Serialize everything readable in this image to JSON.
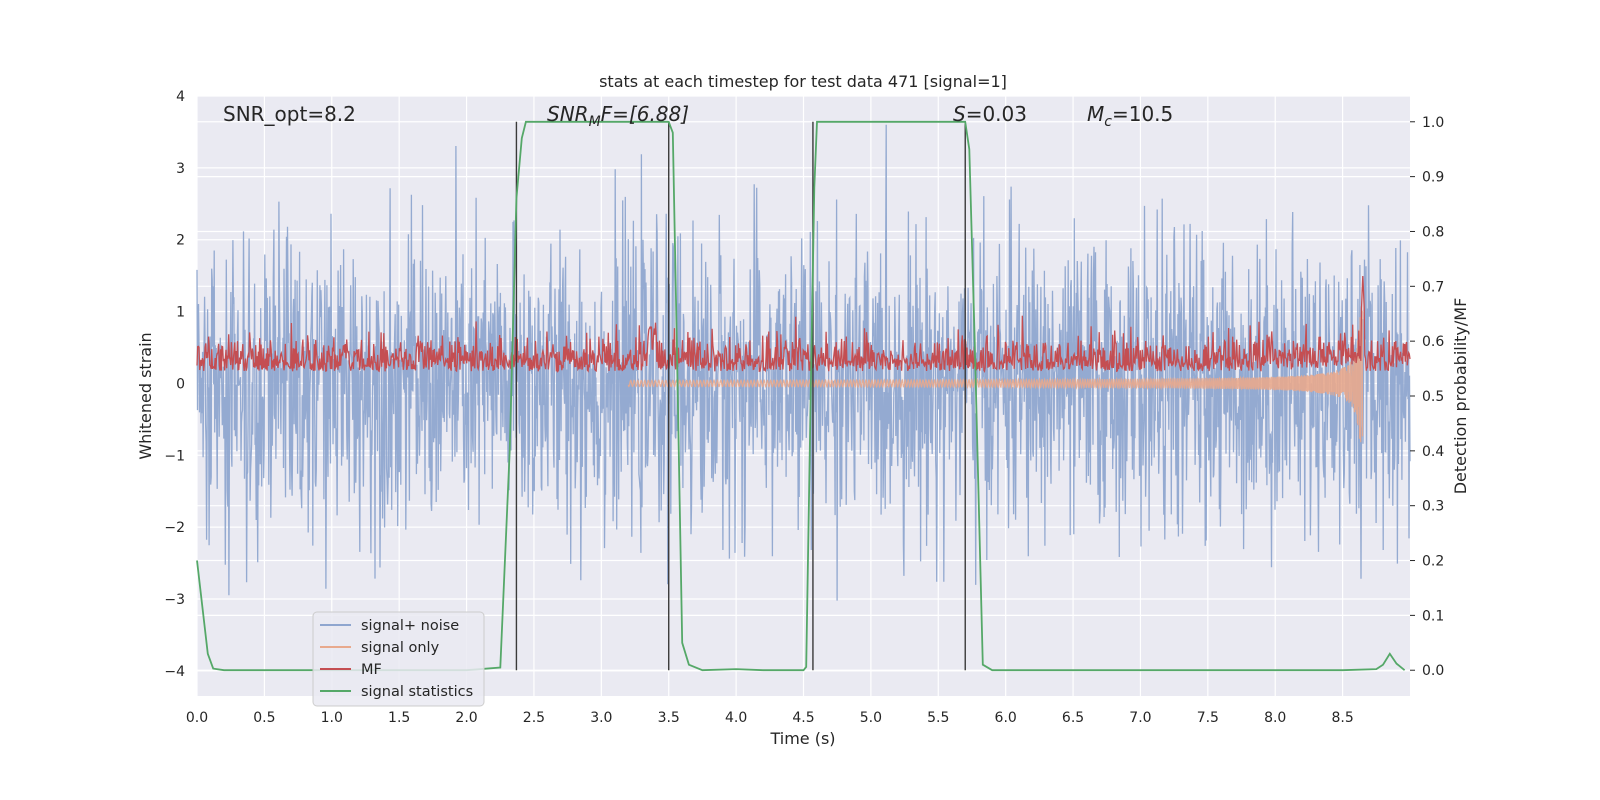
{
  "chart_data": {
    "type": "line",
    "title": "stats at each timestep for test data 471 [signal=1]",
    "xlabel": "Time (s)",
    "ylabel": "Whitened strain",
    "y2label": "Detection probability/MF",
    "xlim": [
      0,
      9.0
    ],
    "ylim": [
      -4.35,
      4.0
    ],
    "y2lim": [
      -0.047,
      1.047
    ],
    "x_ticks": [
      "0.0",
      "0.5",
      "1.0",
      "1.5",
      "2.0",
      "2.5",
      "3.0",
      "3.5",
      "4.0",
      "4.5",
      "5.0",
      "5.5",
      "6.0",
      "6.5",
      "7.0",
      "7.5",
      "8.0",
      "8.5"
    ],
    "y_ticks": [
      "4",
      "3",
      "2",
      "1",
      "0",
      "−1",
      "−2",
      "−3",
      "−4"
    ],
    "y2_ticks": [
      "1.0",
      "0.9",
      "0.8",
      "0.7",
      "0.6",
      "0.5",
      "0.4",
      "0.3",
      "0.2",
      "0.1",
      "0.0"
    ],
    "grid": true,
    "legend_position": "lower-left",
    "annotations": {
      "snr_opt": "SNR_opt=8.2",
      "snr_mf_prefix": "SNR",
      "snr_mf_sub": "M",
      "snr_mf_suffix": "F=[6.88]",
      "s_prefix": "S",
      "s_suffix": "=0.03",
      "mc_prefix": "M",
      "mc_sub": "c",
      "mc_suffix": "=10.5"
    },
    "series": [
      {
        "name": "signal+ noise",
        "color": "#8fa6cf",
        "kind": "noisy-strain",
        "amplitude_rms": 1.0
      },
      {
        "name": "signal only",
        "color": "#e8a98d",
        "kind": "chirp",
        "peak_time": 8.65,
        "peak_amplitude": 1.1
      },
      {
        "name": "MF",
        "color": "#c44e52",
        "kind": "matched-filter",
        "baseline": 0.55,
        "peak_time": 8.65,
        "peak_value": 0.72
      },
      {
        "name": "signal statistics",
        "color": "#55a868",
        "kind": "probability",
        "x": [
          0.0,
          0.08,
          0.12,
          0.2,
          0.5,
          1.0,
          1.5,
          2.0,
          2.25,
          2.32,
          2.37,
          2.41,
          2.44,
          2.5,
          3.0,
          3.5,
          3.53,
          3.56,
          3.6,
          3.65,
          3.75,
          4.0,
          4.2,
          4.5,
          4.52,
          4.56,
          4.58,
          4.6,
          4.62,
          5.0,
          5.5,
          5.7,
          5.73,
          5.77,
          5.83,
          5.9,
          6.5,
          7.5,
          8.5,
          8.75,
          8.8,
          8.85,
          8.9,
          8.96
        ],
        "y": [
          0.2,
          0.03,
          0.003,
          0.0,
          0.0,
          0.0,
          0.0,
          0.0,
          0.005,
          0.4,
          0.86,
          0.97,
          1.0,
          1.0,
          1.0,
          1.0,
          0.98,
          0.6,
          0.05,
          0.01,
          0.0,
          0.002,
          0.0,
          0.0,
          0.006,
          0.6,
          0.88,
          1.0,
          1.0,
          1.0,
          1.0,
          1.0,
          0.95,
          0.6,
          0.01,
          0.0,
          0.0,
          0.0,
          0.0,
          0.002,
          0.01,
          0.03,
          0.012,
          0.0
        ]
      }
    ],
    "vertical_lines_s": [
      2.37,
      3.5,
      4.57,
      5.7
    ],
    "vertical_lines_y2_range": [
      0.0,
      1.0
    ],
    "legend": [
      "signal+ noise",
      "signal only",
      "MF",
      "signal statistics"
    ]
  }
}
